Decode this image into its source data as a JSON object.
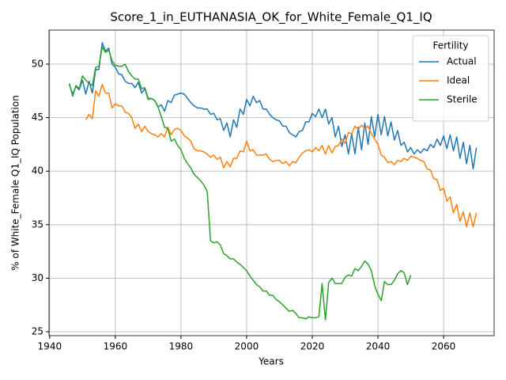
{
  "chart_data": {
    "type": "line",
    "title": "Score_1_in_EUTHANASIA_OK_for_White_Female_Q1_IQ",
    "x_label": "Years",
    "y_label": "% of White_Female Q1_IQ Population",
    "legend_title": "Fertility",
    "legend_position": "upper right",
    "grid": true,
    "xlim": [
      1939.8,
      2075.4
    ],
    "ylim": [
      24.63,
      53.18
    ],
    "xticks": [
      1940,
      1960,
      1980,
      2000,
      2020,
      2040,
      2060
    ],
    "yticks": [
      25,
      30,
      35,
      40,
      45,
      50
    ],
    "x": [
      1946,
      1947,
      1948,
      1949,
      1950,
      1951,
      1952,
      1953,
      1954,
      1955,
      1956,
      1957,
      1958,
      1959,
      1960,
      1961,
      1962,
      1963,
      1964,
      1965,
      1966,
      1967,
      1968,
      1969,
      1970,
      1971,
      1972,
      1973,
      1974,
      1975,
      1976,
      1977,
      1978,
      1979,
      1980,
      1981,
      1982,
      1983,
      1984,
      1985,
      1986,
      1987,
      1988,
      1989,
      1990,
      1991,
      1992,
      1993,
      1994,
      1995,
      1996,
      1997,
      1998,
      1999,
      2000,
      2001,
      2002,
      2003,
      2004,
      2005,
      2006,
      2007,
      2008,
      2009,
      2010,
      2011,
      2012,
      2013,
      2014,
      2015,
      2016,
      2017,
      2018,
      2019,
      2020,
      2021,
      2022,
      2023,
      2024,
      2025,
      2026,
      2027,
      2028,
      2029,
      2030,
      2031,
      2032,
      2033,
      2034,
      2035,
      2036,
      2037,
      2038,
      2039,
      2040,
      2041,
      2042,
      2043,
      2044,
      2045,
      2046,
      2047,
      2048,
      2049,
      2050,
      2051,
      2052,
      2053,
      2054,
      2055,
      2056,
      2057,
      2058,
      2059,
      2060,
      2061,
      2062,
      2063,
      2064,
      2065,
      2066,
      2067,
      2068,
      2069,
      2070
    ],
    "series": [
      {
        "name": "Actual",
        "color": "#1f77b4",
        "values": [
          48.1,
          47.2,
          47.9,
          47.6,
          48.5,
          47.2,
          48.4,
          47.3,
          49.5,
          49.5,
          52.0,
          51.2,
          51.5,
          50.0,
          49.7,
          49.1,
          49.0,
          48.4,
          48.2,
          48.2,
          47.8,
          48.3,
          47.3,
          47.7,
          46.7,
          46.8,
          46.6,
          46.0,
          46.2,
          45.6,
          46.6,
          46.4,
          47.1,
          47.2,
          47.3,
          47.2,
          46.8,
          46.4,
          46.1,
          45.9,
          45.9,
          45.8,
          45.8,
          45.3,
          45.4,
          44.8,
          44.9,
          43.8,
          44.5,
          43.2,
          44.8,
          44.1,
          45.8,
          45.3,
          46.7,
          46.1,
          47.0,
          46.4,
          46.6,
          45.8,
          45.8,
          45.3,
          45.0,
          44.8,
          44.7,
          44.2,
          44.2,
          43.6,
          43.4,
          43.2,
          43.7,
          43.8,
          44.6,
          44.6,
          45.4,
          45.1,
          45.8,
          45.0,
          45.8,
          44.4,
          45.0,
          43.2,
          44.2,
          42.3,
          43.4,
          41.6,
          43.5,
          41.6,
          44.1,
          42.0,
          44.5,
          42.5,
          45.1,
          43.2,
          45.3,
          43.4,
          45.1,
          43.3,
          44.6,
          42.9,
          43.8,
          42.4,
          42.7,
          41.8,
          42.2,
          41.6,
          42.0,
          41.7,
          42.1,
          41.9,
          42.5,
          42.2,
          43.0,
          42.4,
          43.3,
          42.1,
          43.4,
          41.9,
          43.2,
          41.2,
          42.7,
          40.7,
          42.4,
          40.2,
          42.2
        ]
      },
      {
        "name": "Ideal",
        "color": "#ff7f0e",
        "values": [
          null,
          null,
          null,
          null,
          null,
          44.8,
          45.3,
          44.9,
          47.5,
          47.0,
          48.1,
          47.3,
          47.3,
          45.9,
          46.3,
          46.1,
          46.1,
          45.5,
          45.4,
          45.0,
          44.0,
          44.4,
          43.7,
          44.2,
          43.7,
          43.5,
          43.4,
          43.2,
          43.5,
          43.2,
          44.1,
          43.4,
          43.9,
          44.0,
          43.8,
          43.3,
          43.1,
          42.8,
          42.1,
          41.9,
          41.9,
          41.8,
          41.6,
          41.3,
          41.5,
          41.1,
          41.3,
          40.3,
          40.9,
          40.4,
          41.2,
          41.2,
          41.9,
          41.8,
          42.8,
          41.9,
          42.0,
          41.5,
          41.5,
          41.5,
          41.6,
          41.1,
          40.9,
          41.0,
          41.0,
          40.7,
          40.9,
          40.5,
          40.9,
          40.8,
          41.3,
          41.7,
          41.9,
          42.0,
          41.8,
          42.2,
          41.9,
          42.4,
          41.6,
          42.4,
          41.7,
          42.3,
          42.4,
          43.0,
          42.6,
          43.6,
          43.5,
          44.2,
          43.9,
          44.3,
          44.0,
          44.2,
          43.5,
          43.0,
          42.5,
          41.5,
          41.3,
          40.8,
          40.9,
          40.6,
          41.0,
          40.9,
          41.2,
          41.0,
          41.4,
          41.3,
          41.2,
          41.0,
          40.9,
          40.2,
          40.1,
          39.3,
          39.2,
          38.2,
          38.4,
          37.2,
          37.6,
          36.1,
          36.9,
          35.3,
          36.2,
          34.8,
          36.1,
          34.8,
          36.1
        ]
      },
      {
        "name": "Sterile",
        "color": "#2ca02c",
        "values": [
          48.2,
          47.0,
          48.0,
          47.7,
          48.9,
          48.5,
          48.2,
          48.0,
          49.7,
          49.8,
          51.6,
          51.1,
          51.3,
          50.3,
          49.9,
          49.8,
          49.8,
          50.0,
          49.3,
          48.9,
          48.6,
          48.6,
          47.7,
          47.8,
          46.8,
          46.8,
          46.6,
          46.0,
          45.1,
          44.1,
          44.0,
          42.8,
          43.0,
          42.4,
          42.0,
          41.2,
          40.7,
          40.3,
          39.7,
          39.4,
          39.1,
          38.7,
          38.1,
          33.5,
          33.3,
          33.4,
          33.1,
          32.3,
          32.1,
          31.8,
          31.8,
          31.5,
          31.3,
          31.0,
          30.7,
          30.2,
          29.8,
          29.4,
          29.2,
          28.8,
          28.8,
          28.4,
          28.4,
          28.0,
          27.8,
          27.5,
          27.2,
          26.9,
          27.0,
          26.7,
          26.3,
          26.3,
          26.2,
          26.4,
          26.3,
          26.3,
          26.4,
          29.5,
          26.1,
          29.6,
          30.0,
          29.5,
          29.5,
          29.5,
          30.1,
          30.3,
          30.2,
          30.9,
          30.7,
          31.1,
          31.6,
          31.3,
          30.7,
          29.3,
          28.5,
          27.9,
          29.7,
          29.4,
          29.4,
          29.8,
          30.4,
          30.7,
          30.5,
          29.4,
          30.3,
          null,
          null,
          null,
          null,
          null,
          null,
          null,
          null,
          null,
          null,
          null,
          null,
          null,
          null,
          null,
          null,
          null,
          null,
          null,
          null
        ]
      }
    ]
  }
}
